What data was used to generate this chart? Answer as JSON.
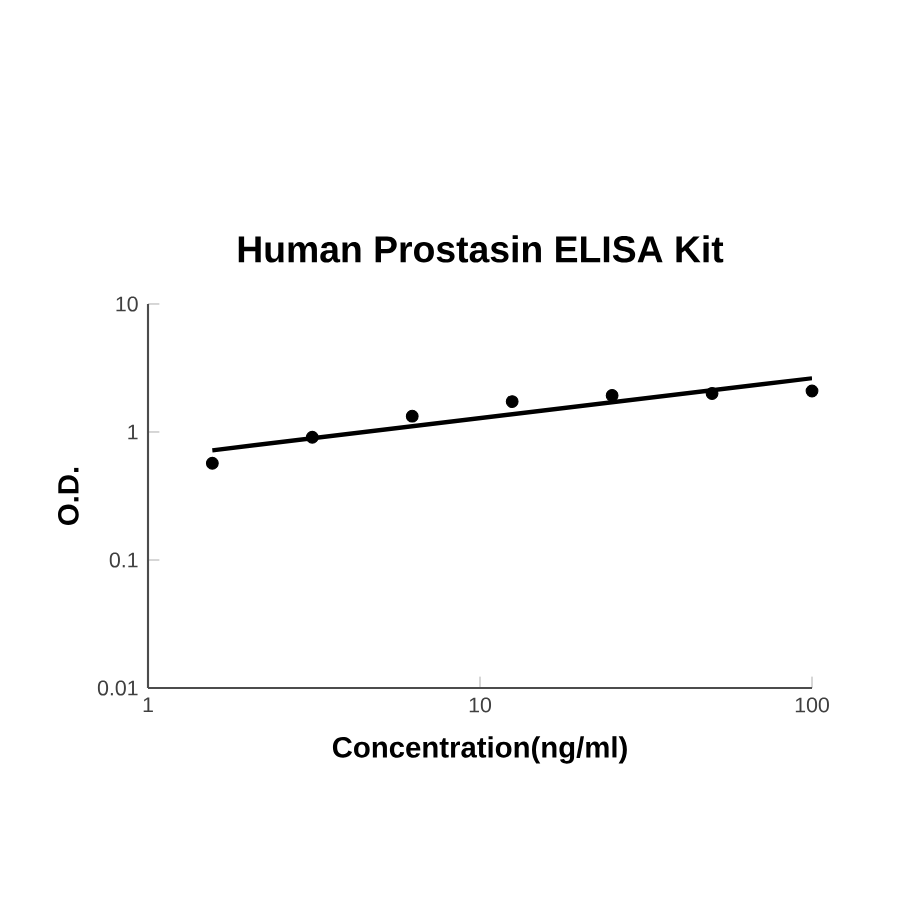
{
  "chart_data": {
    "type": "scatter",
    "title": "Human Prostasin ELISA Kit",
    "xlabel": "Concentration(ng/ml)",
    "ylabel": "O.D.",
    "log": "xy",
    "x": [
      1.5625,
      3.125,
      6.25,
      12.5,
      25,
      50,
      100
    ],
    "xlim": [
      1,
      100
    ],
    "ylim": [
      0.01,
      10
    ],
    "xticks": [
      1,
      10,
      100
    ],
    "yticks": [
      0.01,
      0.1,
      1,
      10
    ],
    "series": [
      {
        "marker": "circle",
        "color": "#000000",
        "values": [
          0.57,
          0.91,
          1.33,
          1.73,
          1.93,
          2.0,
          2.09
        ]
      },
      {
        "type": "line",
        "marker": "none",
        "color": "#000000",
        "x": [
          1.5625,
          100
        ],
        "values": [
          0.72,
          2.63
        ]
      }
    ]
  }
}
